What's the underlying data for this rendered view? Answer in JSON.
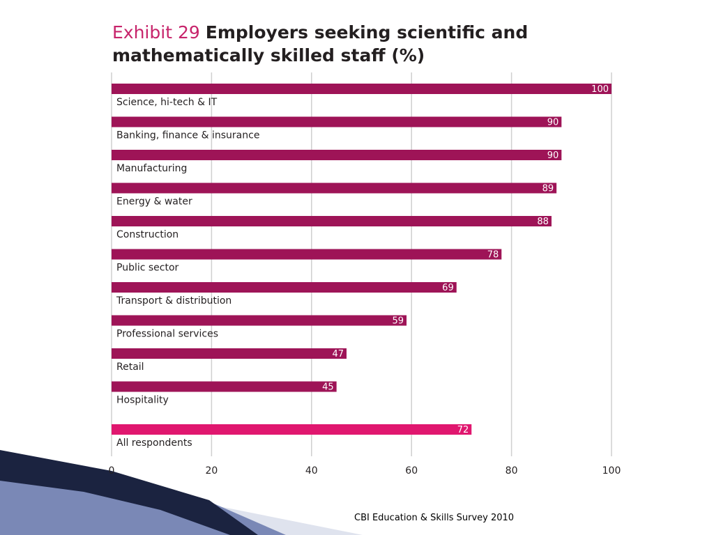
{
  "slide": {
    "exhibit_label": "Exhibit 29",
    "title": "Employers seeking scientific and mathematically skilled staff (%)",
    "source": "CBI Education & Skills Survey 2010"
  },
  "colors": {
    "bar": "#9e1457",
    "total_bar": "#e0176f",
    "title_accent": "#c7246b",
    "grid": "#cfcfcf",
    "decor_dark": "#1b2340",
    "decor_mid": "#7a88b6"
  },
  "chart_data": {
    "type": "bar",
    "orientation": "horizontal",
    "title": "Employers seeking scientific and mathematically skilled staff (%)",
    "xlabel": "",
    "ylabel": "",
    "xlim": [
      0,
      100
    ],
    "xticks": [
      0,
      20,
      40,
      60,
      80,
      100
    ],
    "grid": true,
    "legend": "none",
    "categories": [
      "Science, hi-tech & IT",
      "Banking, finance & insurance",
      "Manufacturing",
      "Energy & water",
      "Construction",
      "Public sector",
      "Transport & distribution",
      "Professional services",
      "Retail",
      "Hospitality",
      "All respondents"
    ],
    "values": [
      100,
      90,
      90,
      89,
      88,
      78,
      69,
      59,
      47,
      45,
      72
    ]
  }
}
